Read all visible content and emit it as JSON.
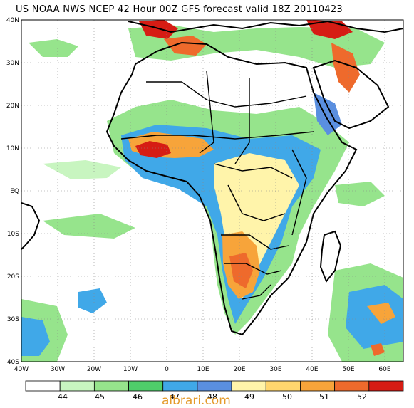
{
  "title": "US NOAA NWS NCEP 42 Hour 00Z GFS forecast valid 18Z 20110423",
  "lat_labels": [
    "40N",
    "30N",
    "20N",
    "10N",
    "EQ",
    "10S",
    "20S",
    "30S",
    "40S"
  ],
  "lon_labels": [
    "40W",
    "30W",
    "20W",
    "10W",
    "0",
    "10E",
    "20E",
    "30E",
    "40E",
    "50E",
    "60E"
  ],
  "legend": {
    "levels": [
      "44",
      "45",
      "46",
      "47",
      "48",
      "49",
      "50",
      "51",
      "52"
    ],
    "colors": [
      "#ffffff",
      "#c8f5c0",
      "#96e48c",
      "#4fcd6a",
      "#40a8e8",
      "#5a8fe0",
      "#fff4aa",
      "#ffd66e",
      "#f7a43a",
      "#ee6a2c",
      "#d61c14"
    ]
  },
  "map": {
    "ocean_color": "#ffffff",
    "border_color": "#000000",
    "lon_range": [
      -40,
      65
    ],
    "lat_range": [
      -40,
      40
    ]
  },
  "watermark": "albrari.com"
}
